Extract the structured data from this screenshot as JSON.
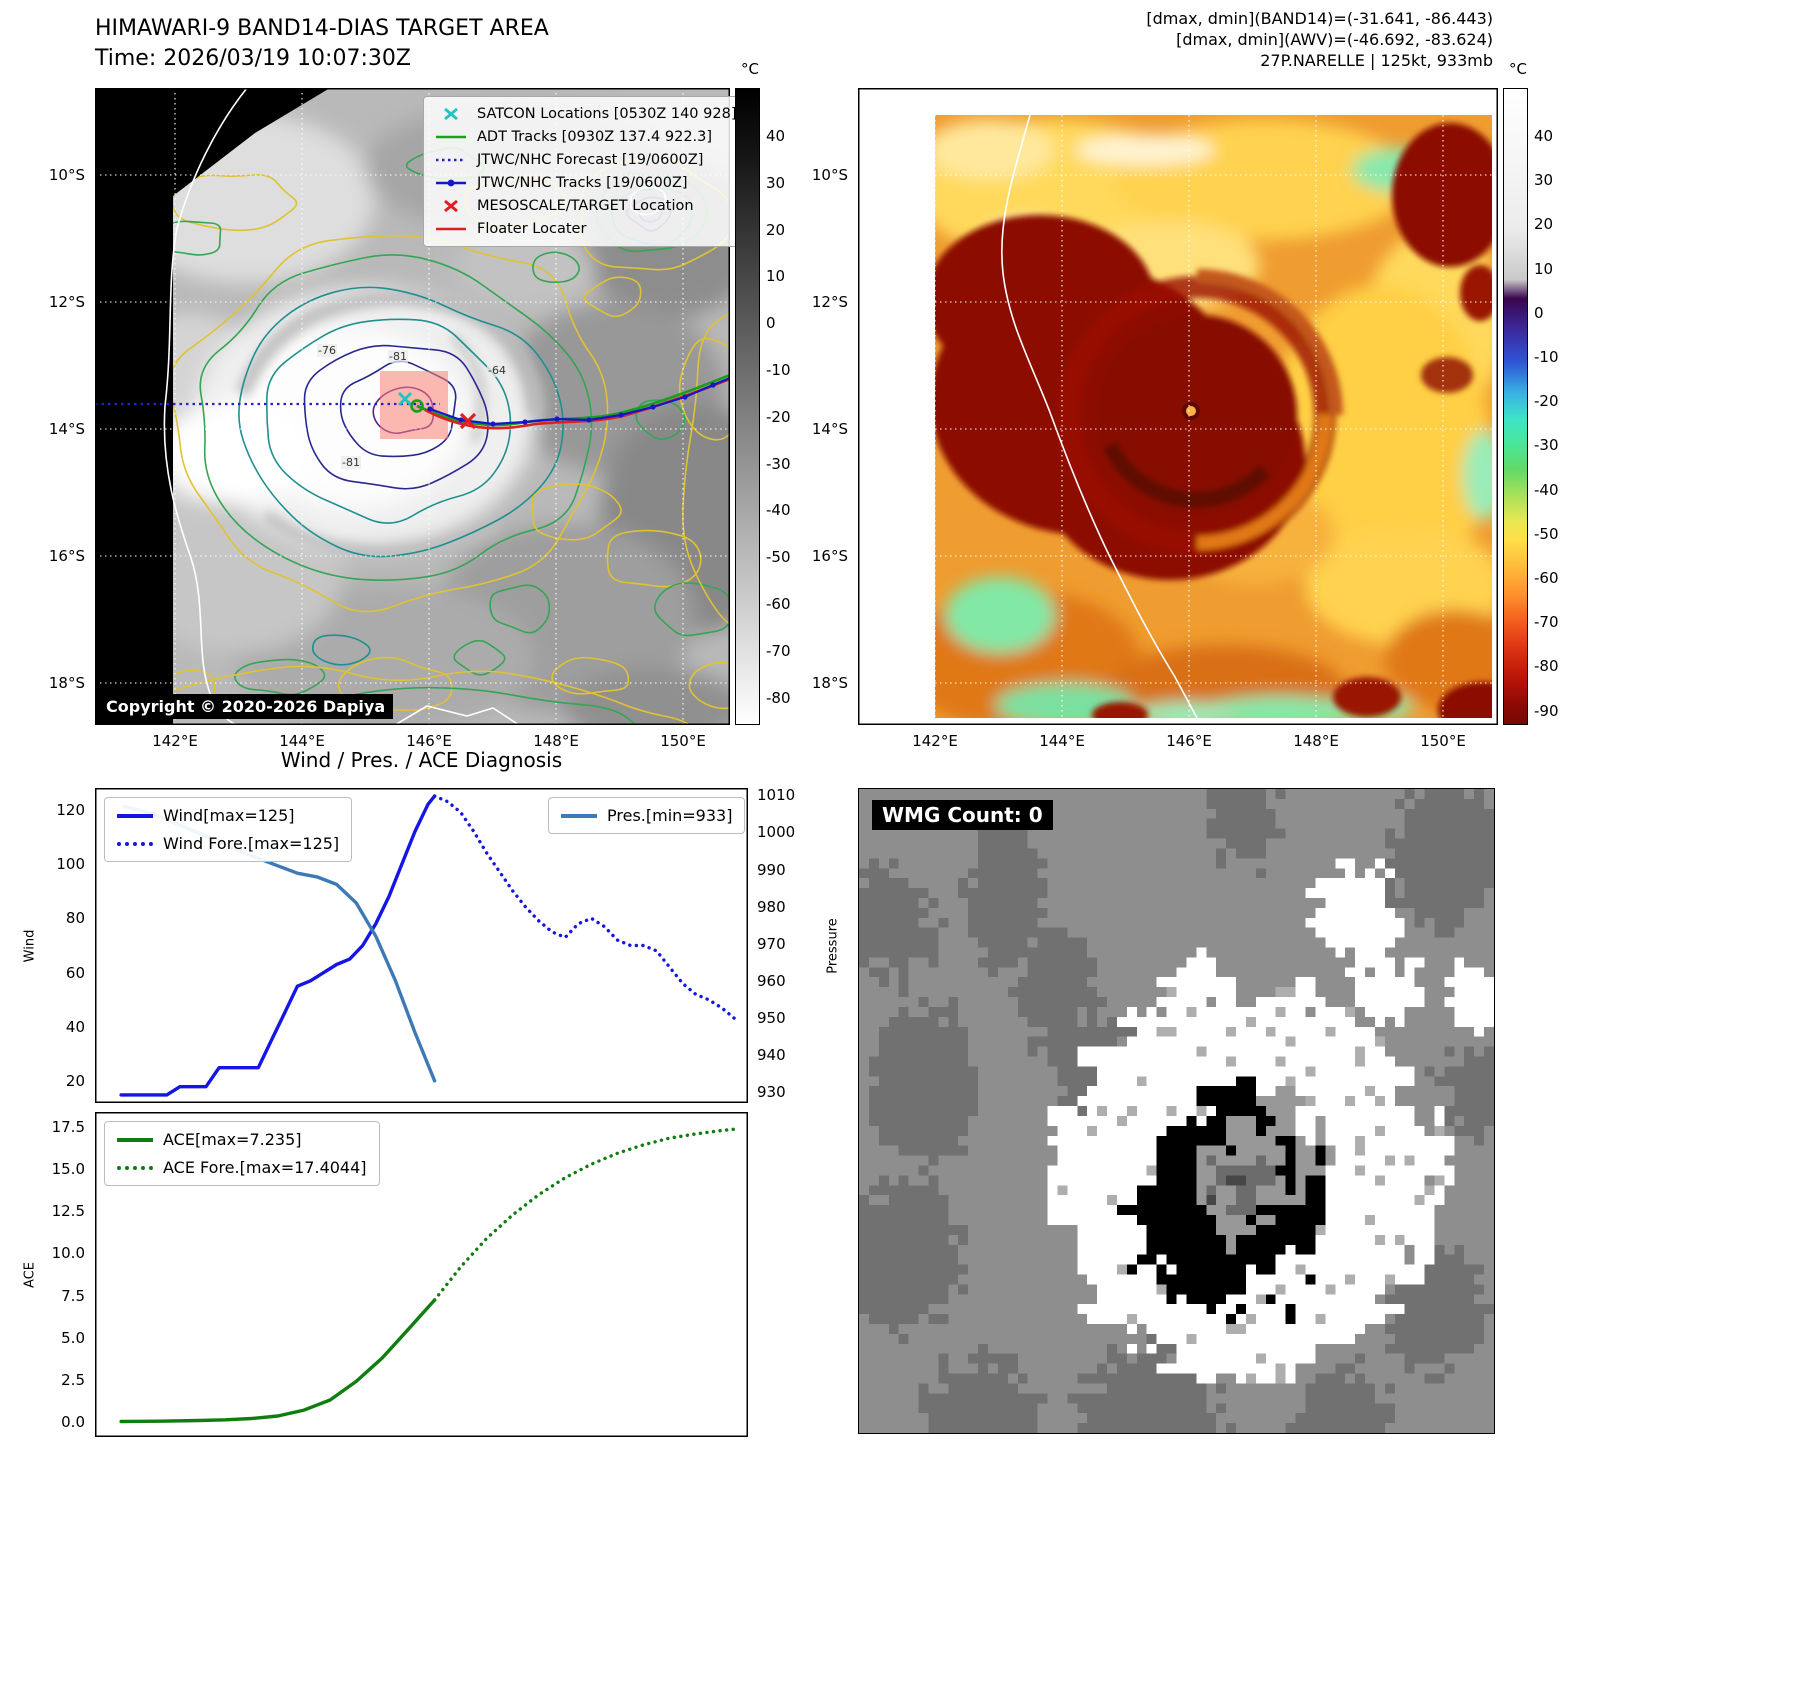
{
  "palette": {
    "wind_line": "#1515e6",
    "pressure_line": "#3d7ab5",
    "ace_line": "#0f7d0f",
    "adt_track": "#18a018",
    "jtwc_track": "#1515cc",
    "jtwc_forecast": "#2222cc",
    "floater_track": "#e02020",
    "satcon_marker": "#20c4c4",
    "target_marker": "#e02020",
    "target_box": "#fa8072"
  },
  "panel_band14": {
    "title": "HIMAWARI-9 BAND14-DIAS TARGET AREA",
    "time_label": "Time: 2026/03/19 10:07:30Z",
    "copyright": "Copyright © 2020-2026 Dapiya",
    "legend": [
      "SATCON Locations [0530Z 140 928]",
      "ADT Tracks [0930Z 137.4 922.3]",
      "JTWC/NHC Forecast [19/0600Z]",
      "JTWC/NHC Tracks [19/0600Z]",
      "MESOSCALE/TARGET Location",
      "Floater Locater"
    ],
    "contour_labels": [
      "-76",
      "-81",
      "-64",
      "-81"
    ],
    "x_ticks": [
      "142°E",
      "144°E",
      "146°E",
      "148°E",
      "150°E"
    ],
    "y_ticks": [
      "10°S",
      "12°S",
      "14°S",
      "16°S",
      "18°S"
    ],
    "colorbar": {
      "unit": "°C",
      "ticks": [
        40,
        30,
        20,
        10,
        0,
        -10,
        -20,
        -30,
        -40,
        -50,
        -60,
        -70,
        -80
      ],
      "gradient": [
        {
          "c": "#000000",
          "p": 0
        },
        {
          "c": "#141414",
          "p": 10
        },
        {
          "c": "#ffffff",
          "p": 100
        }
      ]
    }
  },
  "panel_awv": {
    "header_lines": [
      "[dmax, dmin](BAND14)=(-31.641, -86.443)",
      "[dmax, dmin](AWV)=(-46.692, -83.624)",
      "27P.NARELLE | 125kt, 933mb"
    ],
    "x_ticks": [
      "142°E",
      "144°E",
      "146°E",
      "148°E",
      "150°E"
    ],
    "y_ticks": [
      "10°S",
      "12°S",
      "14°S",
      "16°S",
      "18°S"
    ],
    "colorbar": {
      "unit": "°C",
      "ticks": [
        40,
        30,
        20,
        10,
        0,
        -10,
        -20,
        -30,
        -40,
        -50,
        -60,
        -70,
        -80,
        -90
      ],
      "gradient": [
        {
          "c": "#ffffff",
          "p": 0
        },
        {
          "c": "#ececec",
          "p": 22
        },
        {
          "c": "#c9c9c9",
          "p": 30
        },
        {
          "c": "#38064e",
          "p": 33
        },
        {
          "c": "#3c2a9e",
          "p": 38
        },
        {
          "c": "#2f55d6",
          "p": 43
        },
        {
          "c": "#38b4e4",
          "p": 48
        },
        {
          "c": "#3fe4c8",
          "p": 52
        },
        {
          "c": "#4ae698",
          "p": 56
        },
        {
          "c": "#62d966",
          "p": 60
        },
        {
          "c": "#a8e25a",
          "p": 64
        },
        {
          "c": "#e8e852",
          "p": 68
        },
        {
          "c": "#ffdf4a",
          "p": 71
        },
        {
          "c": "#ffb43a",
          "p": 76
        },
        {
          "c": "#ff8c2a",
          "p": 80
        },
        {
          "c": "#f25c1e",
          "p": 84
        },
        {
          "c": "#dd3412",
          "p": 88
        },
        {
          "c": "#b81408",
          "p": 93
        },
        {
          "c": "#8c0a04",
          "p": 97
        },
        {
          "c": "#7a0803",
          "p": 100
        }
      ]
    }
  },
  "diagnosis": {
    "title": "Wind / Pres. / ACE Diagnosis",
    "ylabel_wind": "Wind",
    "ylabel_pressure": "Pressure",
    "ylabel_ace": "ACE"
  },
  "wmg": {
    "label": "WMG Count: 0"
  },
  "chart_data": [
    {
      "type": "line",
      "title": "Wind / Pres. / ACE Diagnosis",
      "xlabel": "",
      "ylabel": "Wind",
      "y2label": "Pressure",
      "ylim": [
        12,
        128
      ],
      "y2lim": [
        927,
        1012
      ],
      "yticks": [
        20,
        40,
        60,
        80,
        100,
        120
      ],
      "y2ticks": [
        1010,
        1000,
        990,
        980,
        970,
        960,
        950,
        940,
        930
      ],
      "legend_position": "upper left / upper right",
      "series": [
        {
          "name": "Wind[max=125]",
          "style": "solid",
          "color": "#1515e6",
          "axis": "left",
          "x": [
            0.04,
            0.08,
            0.11,
            0.13,
            0.15,
            0.17,
            0.19,
            0.21,
            0.23,
            0.25,
            0.27,
            0.29,
            0.31,
            0.33,
            0.35,
            0.37,
            0.39,
            0.41,
            0.43,
            0.45,
            0.47,
            0.49,
            0.51,
            0.52
          ],
          "values": [
            15,
            15,
            15,
            18,
            18,
            18,
            25,
            25,
            25,
            25,
            35,
            45,
            55,
            57,
            60,
            63,
            65,
            70,
            78,
            88,
            100,
            112,
            122,
            125
          ]
        },
        {
          "name": "Wind Fore.[max=125]",
          "style": "dotted",
          "color": "#1515e6",
          "axis": "left",
          "x": [
            0.52,
            0.54,
            0.56,
            0.58,
            0.6,
            0.62,
            0.64,
            0.66,
            0.68,
            0.7,
            0.72,
            0.74,
            0.76,
            0.78,
            0.8,
            0.82,
            0.84,
            0.86,
            0.88,
            0.9,
            0.92,
            0.94,
            0.96,
            0.985
          ],
          "values": [
            125,
            123,
            119,
            112,
            104,
            97,
            90,
            84,
            79,
            75,
            73,
            78,
            80,
            77,
            72,
            70,
            70,
            68,
            62,
            56,
            52,
            50,
            47,
            42
          ]
        },
        {
          "name": "Pres.[min=933]",
          "style": "solid",
          "color": "#3d7ab5",
          "axis": "right",
          "x": [
            0.045,
            0.09,
            0.13,
            0.17,
            0.21,
            0.25,
            0.28,
            0.31,
            0.34,
            0.37,
            0.4,
            0.43,
            0.46,
            0.49,
            0.52
          ],
          "values": [
            1007,
            1005,
            1002,
            999,
            996,
            993,
            991,
            989,
            988,
            986,
            981,
            972,
            960,
            946,
            933
          ]
        }
      ]
    },
    {
      "type": "line",
      "xlabel": "",
      "ylabel": "ACE",
      "ylim": [
        -0.9,
        18.4
      ],
      "yticks": [
        "0.0",
        "2.5",
        "5.0",
        "7.5",
        "10.0",
        "12.5",
        "15.0",
        "17.5"
      ],
      "legend_position": "upper left",
      "series": [
        {
          "name": "ACE[max=7.235]",
          "style": "solid",
          "color": "#0f7d0f",
          "axis": "left",
          "x": [
            0.04,
            0.1,
            0.16,
            0.2,
            0.24,
            0.28,
            0.32,
            0.36,
            0.4,
            0.44,
            0.48,
            0.52
          ],
          "values": [
            0.02,
            0.04,
            0.08,
            0.12,
            0.2,
            0.35,
            0.7,
            1.3,
            2.4,
            3.8,
            5.5,
            7.235
          ]
        },
        {
          "name": "ACE Fore.[max=17.4044]",
          "style": "dotted",
          "color": "#0f7d0f",
          "axis": "left",
          "x": [
            0.52,
            0.56,
            0.6,
            0.64,
            0.68,
            0.72,
            0.76,
            0.8,
            0.84,
            0.88,
            0.92,
            0.96,
            0.985
          ],
          "values": [
            7.235,
            9.2,
            10.9,
            12.3,
            13.5,
            14.5,
            15.3,
            15.95,
            16.45,
            16.85,
            17.1,
            17.3,
            17.4
          ]
        }
      ]
    }
  ]
}
